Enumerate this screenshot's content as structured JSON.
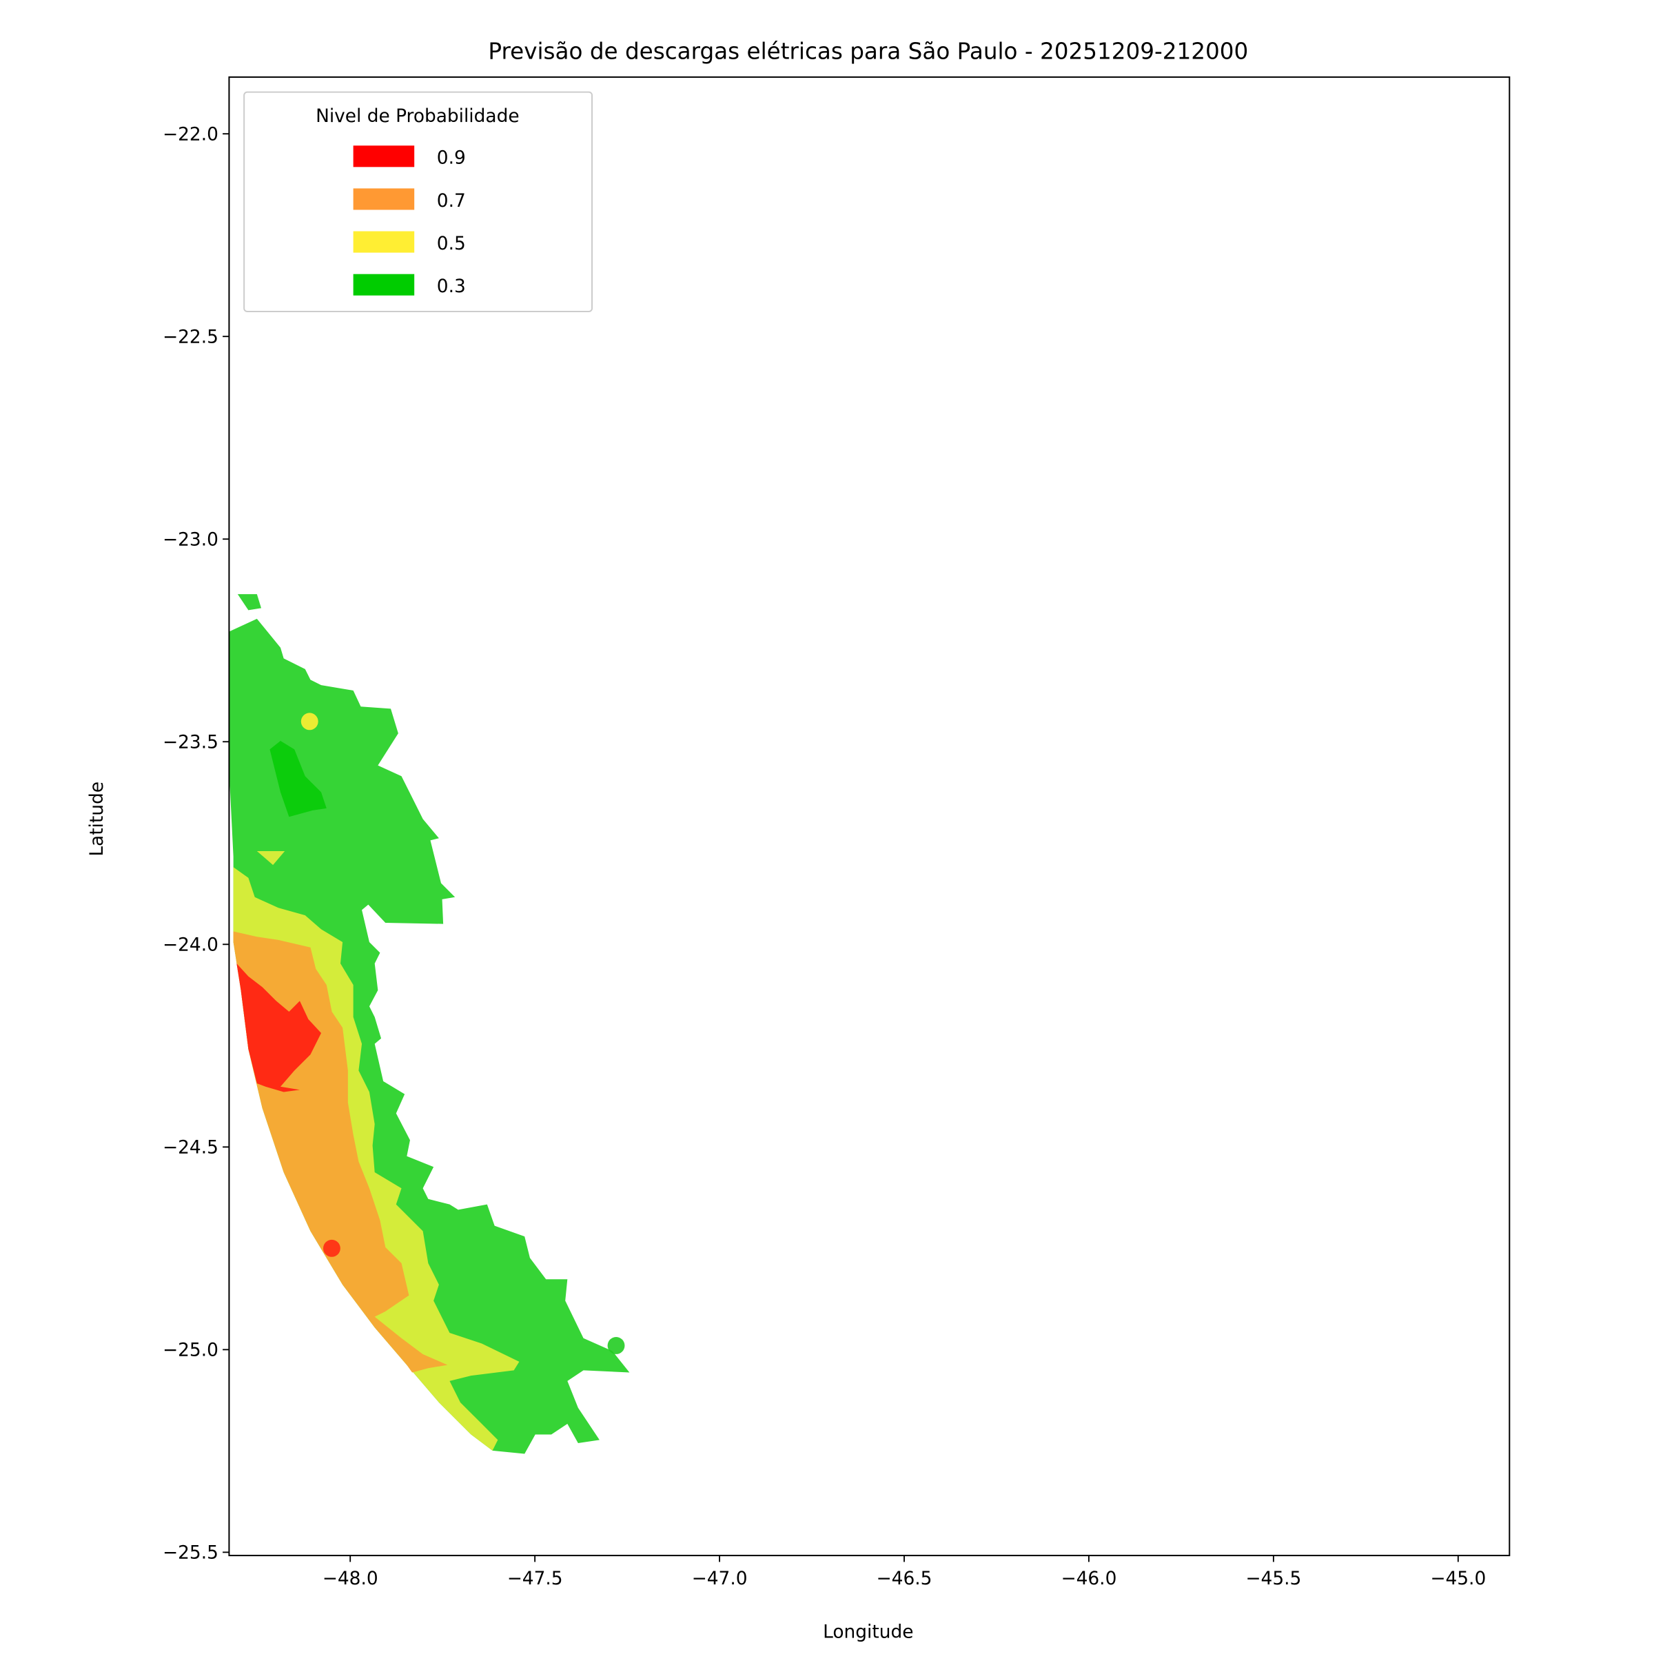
{
  "chart_data": {
    "type": "contour",
    "title": "Previsão de descargas elétricas para São Paulo - 20251209-212000",
    "xlabel": "Longitude",
    "ylabel": "Latitude",
    "xlim": [
      -48.328,
      -44.861
    ],
    "ylim": [
      -25.508,
      -21.86
    ],
    "grid": false,
    "x_ticks": [
      {
        "value": -48.0,
        "label": "−48.0"
      },
      {
        "value": -47.5,
        "label": "−47.5"
      },
      {
        "value": -47.0,
        "label": "−47.0"
      },
      {
        "value": -46.5,
        "label": "−46.5"
      },
      {
        "value": -46.0,
        "label": "−46.0"
      },
      {
        "value": -45.5,
        "label": "−45.5"
      },
      {
        "value": -45.0,
        "label": "−45.0"
      }
    ],
    "y_ticks": [
      {
        "value": -22.0,
        "label": "−22.0"
      },
      {
        "value": -22.5,
        "label": "−22.5"
      },
      {
        "value": -23.0,
        "label": "−23.0"
      },
      {
        "value": -23.5,
        "label": "−23.5"
      },
      {
        "value": -24.0,
        "label": "−24.0"
      },
      {
        "value": -24.5,
        "label": "−24.5"
      },
      {
        "value": -25.0,
        "label": "−25.0"
      },
      {
        "value": -25.5,
        "label": "−25.5"
      }
    ],
    "legend": {
      "title": "Nivel de Probabilidade",
      "placement": "top-left",
      "entries": [
        {
          "label": "0.9",
          "color": "#ff0000"
        },
        {
          "label": "0.7",
          "color": "#ff9933"
        },
        {
          "label": "0.5",
          "color": "#ffee33"
        },
        {
          "label": "0.3",
          "color": "#00cc00"
        }
      ]
    },
    "levels": [
      0.3,
      0.5,
      0.7,
      0.9
    ],
    "points": [
      {
        "lon": -48.11,
        "lat": -23.45,
        "level": 0.5,
        "color": "#ffee33"
      },
      {
        "lon": -48.05,
        "lat": -24.75,
        "level": 0.9,
        "color": "#ff2a14"
      },
      {
        "lon": -47.28,
        "lat": -24.99,
        "level": 0.3,
        "color": "#22cc22"
      }
    ]
  }
}
